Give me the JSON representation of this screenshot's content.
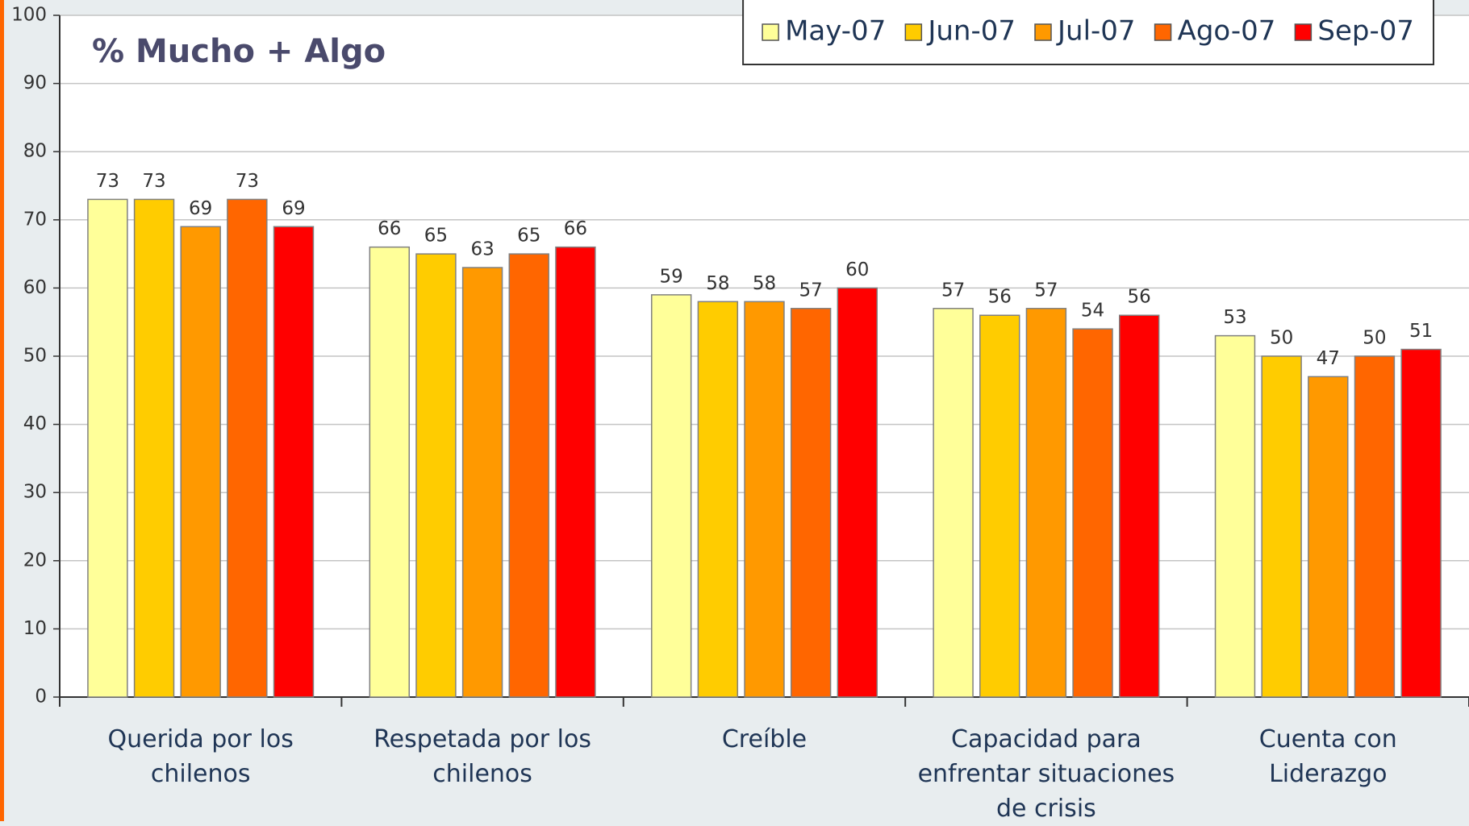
{
  "chart_data": {
    "type": "bar",
    "title": "% Mucho + Algo",
    "categories": [
      "Querida por los chilenos",
      "Respetada por los chilenos",
      "Creíble",
      "Capacidad para enfrentar situaciones de crisis",
      "Cuenta con Liderazgo"
    ],
    "series": [
      {
        "name": "May-07",
        "color": "#ffff99",
        "values": [
          73,
          66,
          59,
          57,
          53
        ]
      },
      {
        "name": "Jun-07",
        "color": "#ffcc00",
        "values": [
          73,
          65,
          58,
          56,
          50
        ]
      },
      {
        "name": "Jul-07",
        "color": "#ff9900",
        "values": [
          69,
          63,
          58,
          57,
          47
        ]
      },
      {
        "name": "Ago-07",
        "color": "#ff6600",
        "values": [
          73,
          65,
          57,
          54,
          50
        ]
      },
      {
        "name": "Sep-07",
        "color": "#ff0000",
        "values": [
          69,
          66,
          60,
          56,
          51
        ]
      }
    ],
    "ylim": [
      0,
      100
    ],
    "yticks": [
      0,
      10,
      20,
      30,
      40,
      50,
      60,
      70,
      80,
      90,
      100
    ],
    "grid": true,
    "legend": "top-right"
  }
}
